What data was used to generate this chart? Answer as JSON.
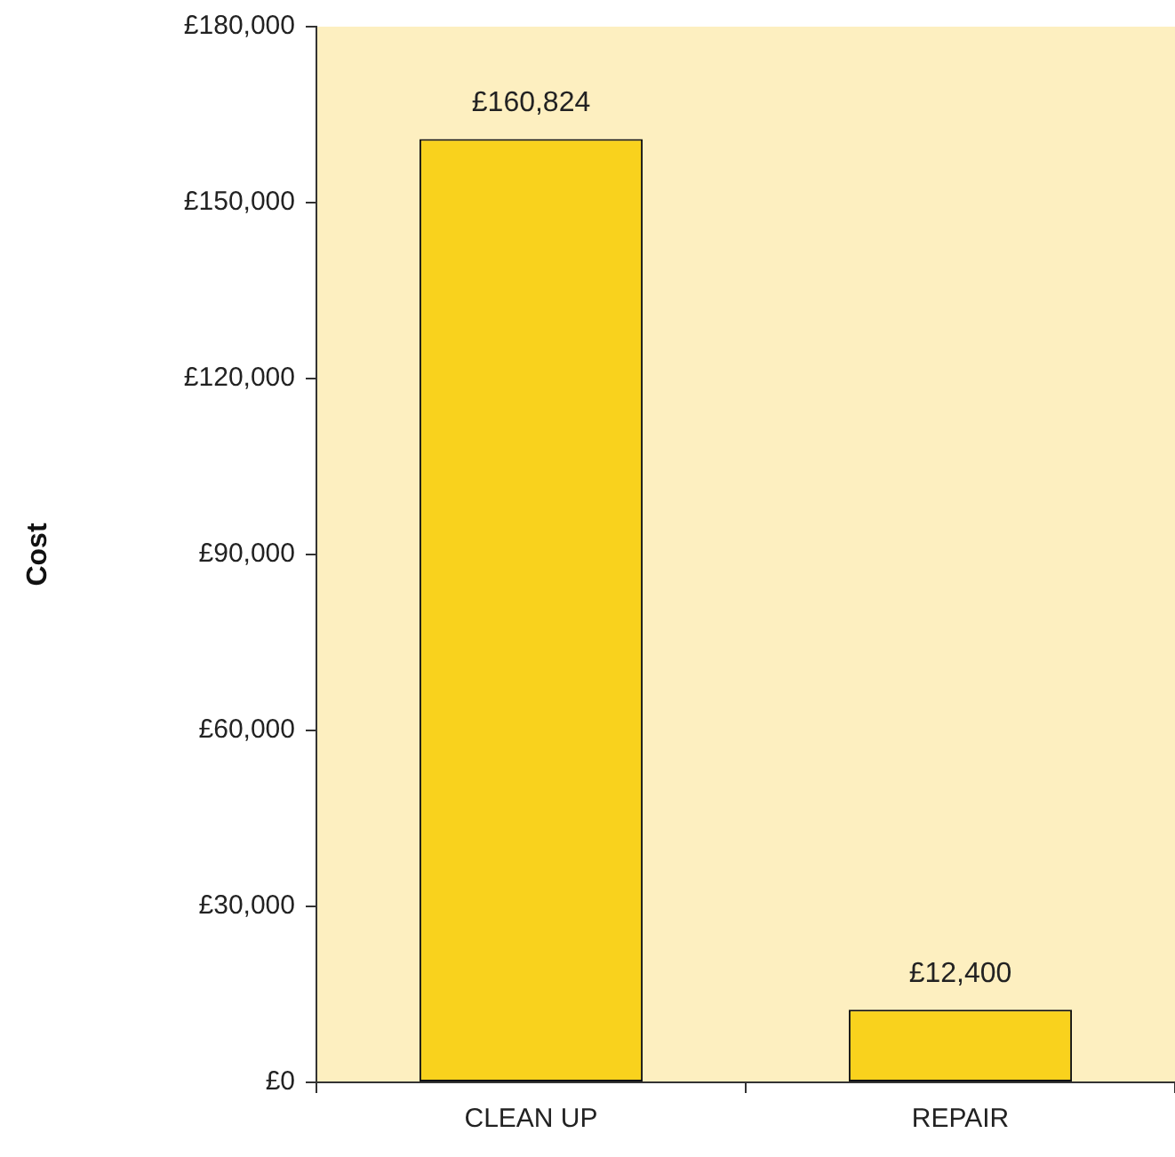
{
  "chart_data": {
    "type": "bar",
    "ylabel": "Cost",
    "categories": [
      "CLEAN UP",
      "REPAIR"
    ],
    "values": [
      160824,
      12400
    ],
    "color": "#f9d21d",
    "value_labels": [
      "£160,824",
      "£12,400"
    ],
    "ylim": [
      0,
      180000
    ],
    "yticks": [
      {
        "value": 0,
        "label": "£0"
      },
      {
        "value": 30000,
        "label": "£30,000"
      },
      {
        "value": 60000,
        "label": "£60,000"
      },
      {
        "value": 90000,
        "label": "£90,000"
      },
      {
        "value": 120000,
        "label": "£120,000"
      },
      {
        "value": 150000,
        "label": "£150,000"
      },
      {
        "value": 180000,
        "label": "£180,000"
      }
    ],
    "grid": false,
    "legend": false
  }
}
